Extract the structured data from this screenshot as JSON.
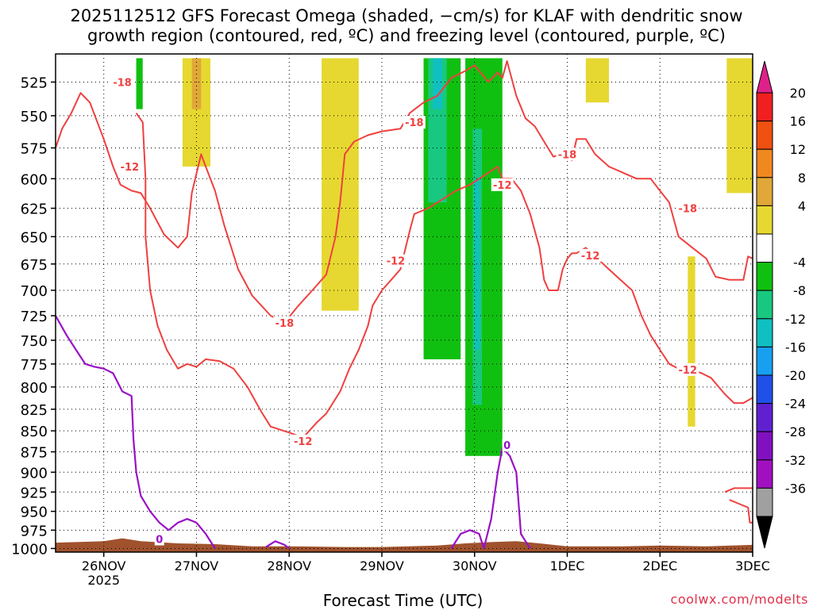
{
  "title_line1": "2025112512 GFS Forecast Omega (shaded, −cm/s) for KLAF with dendritic snow",
  "title_line2": "growth region (contoured, red, ºC) and freezing level (contoured, purple, ºC)",
  "xlabel": "Forecast Time (UTC)",
  "credit": "coolwx.com/modelts",
  "colors": {
    "dgz_contour": "#f04040",
    "freezing_contour": "#9a10c8",
    "terrain": "#a0522d",
    "grid": "#000000"
  },
  "chart_data": {
    "type": "heatmap",
    "x_ticks": [
      {
        "label": "26NOV",
        "sub": "2025",
        "day": 0
      },
      {
        "label": "27NOV",
        "day": 1
      },
      {
        "label": "28NOV",
        "day": 2
      },
      {
        "label": "29NOV",
        "day": 3
      },
      {
        "label": "30NOV",
        "day": 4
      },
      {
        "label": "1DEC",
        "day": 5
      },
      {
        "label": "2DEC",
        "day": 6
      },
      {
        "label": "3DEC",
        "day": 7
      }
    ],
    "xlim_days": [
      -0.52,
      7.0
    ],
    "y_ticks": [
      525,
      550,
      575,
      600,
      625,
      650,
      675,
      700,
      725,
      750,
      775,
      800,
      825,
      850,
      875,
      900,
      925,
      950,
      975,
      1000
    ],
    "ylim_hPa": [
      1005,
      505
    ],
    "y_axis_log": true,
    "grid": true,
    "colorbar": {
      "labels": [
        "20",
        "16",
        "12",
        "8",
        "4",
        "-4",
        "-8",
        "-12",
        "-16",
        "-20",
        "-24",
        "-28",
        "-32",
        "-36"
      ],
      "colors": [
        "#e0208a",
        "#f02020",
        "#f05010",
        "#f08820",
        "#e0a838",
        "#e6d830",
        "#ffffff",
        "#10c010",
        "#18c880",
        "#10c0c0",
        "#18a0f0",
        "#2050e8",
        "#6020d0",
        "#8010c0",
        "#a010c0",
        "#a0a0a0",
        "#000000"
      ]
    },
    "omega_regions": [
      {
        "color": "#e6d830",
        "day_range": [
          0.85,
          1.15
        ],
        "p_range": [
          508,
          590
        ]
      },
      {
        "color": "#e0a838",
        "day_range": [
          0.95,
          1.05
        ],
        "p_range": [
          508,
          545
        ]
      },
      {
        "color": "#e6d830",
        "day_range": [
          2.35,
          2.75
        ],
        "p_range": [
          508,
          720
        ]
      },
      {
        "color": "#e6d830",
        "day_range": [
          5.2,
          5.45
        ],
        "p_range": [
          508,
          540
        ]
      },
      {
        "color": "#e6d830",
        "day_range": [
          6.3,
          6.38
        ],
        "p_range": [
          668,
          845
        ]
      },
      {
        "color": "#e6d830",
        "day_range": [
          6.72,
          7.0
        ],
        "p_range": [
          508,
          612
        ]
      },
      {
        "color": "#10c010",
        "day_range": [
          0.35,
          0.42
        ],
        "p_range": [
          508,
          545
        ]
      },
      {
        "color": "#10c010",
        "day_range": [
          3.45,
          3.85
        ],
        "p_range": [
          508,
          770
        ]
      },
      {
        "color": "#10c010",
        "day_range": [
          3.9,
          4.3
        ],
        "p_range": [
          508,
          880
        ]
      },
      {
        "color": "#18c880",
        "day_range": [
          3.5,
          3.7
        ],
        "p_range": [
          508,
          620
        ]
      },
      {
        "color": "#10c0c0",
        "day_range": [
          3.55,
          3.65
        ],
        "p_range": [
          508,
          545
        ]
      },
      {
        "color": "#18c880",
        "day_range": [
          3.98,
          4.08
        ],
        "p_range": [
          560,
          820
        ]
      },
      {
        "color": "#10c0c0",
        "day_range": [
          4.0,
          4.05
        ],
        "p_range": [
          600,
          760
        ]
      }
    ],
    "dgz_labels": [
      {
        "text": "-18",
        "day": 0.2,
        "p": 525
      },
      {
        "text": "-12",
        "day": 0.28,
        "p": 590
      },
      {
        "text": "-18",
        "day": 1.95,
        "p": 732
      },
      {
        "text": "-12",
        "day": 2.15,
        "p": 862
      },
      {
        "text": "-12",
        "day": 3.15,
        "p": 672
      },
      {
        "text": "-18",
        "day": 3.35,
        "p": 555
      },
      {
        "text": "-12",
        "day": 4.3,
        "p": 605
      },
      {
        "text": "-18",
        "day": 5.0,
        "p": 580
      },
      {
        "text": "-12",
        "day": 5.25,
        "p": 667
      },
      {
        "text": "-18",
        "day": 6.3,
        "p": 625
      },
      {
        "text": "-12",
        "day": 6.3,
        "p": 781
      }
    ],
    "freezing_labels": [
      {
        "text": "0",
        "day": 0.6,
        "p": 987
      },
      {
        "text": "0",
        "day": 4.35,
        "p": 867
      }
    ],
    "dgz_minus18_curves": [
      [
        [
          -0.52,
          575
        ],
        [
          -0.45,
          560
        ],
        [
          -0.35,
          548
        ],
        [
          -0.25,
          533
        ],
        [
          -0.15,
          540
        ],
        [
          0.0,
          568
        ],
        [
          0.1,
          590
        ],
        [
          0.18,
          605
        ],
        [
          0.3,
          610
        ],
        [
          0.4,
          612
        ],
        [
          0.5,
          625
        ],
        [
          0.65,
          648
        ],
        [
          0.8,
          660
        ],
        [
          0.9,
          650
        ],
        [
          0.95,
          612
        ],
        [
          1.05,
          580
        ],
        [
          1.1,
          590
        ],
        [
          1.2,
          610
        ],
        [
          1.3,
          640
        ],
        [
          1.45,
          680
        ],
        [
          1.6,
          705
        ],
        [
          1.8,
          725
        ],
        [
          1.95,
          732
        ],
        [
          2.1,
          715
        ],
        [
          2.25,
          700
        ],
        [
          2.4,
          685
        ],
        [
          2.5,
          650
        ],
        [
          2.55,
          620
        ],
        [
          2.6,
          580
        ],
        [
          2.7,
          570
        ],
        [
          2.85,
          565
        ],
        [
          3.0,
          562
        ],
        [
          3.2,
          560
        ],
        [
          3.3,
          548
        ],
        [
          3.45,
          540
        ],
        [
          3.6,
          535
        ],
        [
          3.75,
          522
        ],
        [
          3.9,
          517
        ],
        [
          4.0,
          513
        ],
        [
          4.15,
          525
        ],
        [
          4.25,
          518
        ],
        [
          4.3,
          522
        ],
        [
          4.35,
          510
        ],
        [
          4.45,
          535
        ],
        [
          4.55,
          552
        ],
        [
          4.65,
          558
        ],
        [
          4.75,
          570
        ],
        [
          4.85,
          582
        ],
        [
          4.95,
          580
        ],
        [
          5.05,
          585
        ],
        [
          5.1,
          568
        ],
        [
          5.2,
          568
        ],
        [
          5.3,
          580
        ],
        [
          5.45,
          590
        ],
        [
          5.6,
          595
        ],
        [
          5.75,
          600
        ],
        [
          5.9,
          600
        ],
        [
          6.0,
          610
        ],
        [
          6.1,
          620
        ],
        [
          6.2,
          650
        ],
        [
          6.35,
          660
        ],
        [
          6.5,
          670
        ],
        [
          6.6,
          687
        ],
        [
          6.75,
          690
        ],
        [
          6.9,
          690
        ],
        [
          6.95,
          668
        ],
        [
          7.0,
          670
        ]
      ]
    ],
    "dgz_minus12_curves": [
      [
        [
          0.35,
          548
        ],
        [
          0.42,
          555
        ],
        [
          0.45,
          600
        ],
        [
          0.45,
          650
        ],
        [
          0.5,
          700
        ],
        [
          0.58,
          735
        ],
        [
          0.68,
          760
        ],
        [
          0.8,
          780
        ],
        [
          0.9,
          775
        ],
        [
          1.0,
          778
        ],
        [
          1.1,
          770
        ],
        [
          1.25,
          772
        ],
        [
          1.4,
          780
        ],
        [
          1.55,
          800
        ],
        [
          1.7,
          828
        ],
        [
          1.8,
          845
        ],
        [
          2.0,
          852
        ],
        [
          2.15,
          858
        ],
        [
          2.3,
          840
        ],
        [
          2.4,
          830
        ],
        [
          2.55,
          805
        ],
        [
          2.65,
          780
        ],
        [
          2.75,
          760
        ],
        [
          2.85,
          735
        ],
        [
          2.9,
          715
        ],
        [
          3.0,
          700
        ],
        [
          3.1,
          690
        ],
        [
          3.2,
          680
        ],
        [
          3.3,
          645
        ],
        [
          3.35,
          630
        ],
        [
          3.5,
          625
        ],
        [
          3.6,
          620
        ],
        [
          3.7,
          615
        ],
        [
          3.8,
          610
        ],
        [
          3.95,
          605
        ],
        [
          4.05,
          600
        ],
        [
          4.15,
          595
        ],
        [
          4.25,
          590
        ],
        [
          4.3,
          600
        ],
        [
          4.4,
          600
        ],
        [
          4.5,
          610
        ],
        [
          4.6,
          630
        ],
        [
          4.7,
          660
        ],
        [
          4.75,
          690
        ],
        [
          4.8,
          700
        ],
        [
          4.9,
          700
        ],
        [
          4.95,
          680
        ],
        [
          5.0,
          670
        ],
        [
          5.05,
          665
        ],
        [
          5.1,
          665
        ],
        [
          5.2,
          660
        ],
        [
          5.3,
          668
        ],
        [
          5.45,
          680
        ],
        [
          5.55,
          688
        ],
        [
          5.7,
          700
        ],
        [
          5.8,
          725
        ],
        [
          5.9,
          745
        ],
        [
          6.0,
          760
        ],
        [
          6.1,
          775
        ],
        [
          6.2,
          780
        ],
        [
          6.3,
          780
        ],
        [
          6.45,
          785
        ],
        [
          6.55,
          790
        ],
        [
          6.7,
          808
        ],
        [
          6.8,
          818
        ],
        [
          6.9,
          818
        ],
        [
          7.0,
          812
        ]
      ],
      [
        [
          6.7,
          925
        ],
        [
          6.8,
          920
        ],
        [
          6.9,
          920
        ],
        [
          7.0,
          920
        ]
      ],
      [
        [
          6.75,
          935
        ],
        [
          6.85,
          940
        ],
        [
          6.95,
          945
        ],
        [
          6.97,
          965
        ],
        [
          7.0,
          965
        ]
      ]
    ],
    "freezing_curves": [
      [
        [
          -0.52,
          725
        ],
        [
          -0.4,
          745
        ],
        [
          -0.3,
          760
        ],
        [
          -0.2,
          775
        ],
        [
          -0.1,
          778
        ],
        [
          0.0,
          780
        ],
        [
          0.1,
          785
        ],
        [
          0.2,
          805
        ],
        [
          0.3,
          810
        ],
        [
          0.32,
          860
        ],
        [
          0.35,
          900
        ],
        [
          0.4,
          930
        ],
        [
          0.5,
          950
        ],
        [
          0.6,
          965
        ],
        [
          0.7,
          975
        ],
        [
          0.8,
          965
        ],
        [
          0.9,
          960
        ],
        [
          1.0,
          965
        ],
        [
          1.1,
          980
        ],
        [
          1.2,
          1000
        ]
      ],
      [
        [
          1.75,
          998
        ],
        [
          1.85,
          990
        ],
        [
          1.95,
          995
        ],
        [
          2.0,
          1000
        ]
      ],
      [
        [
          3.75,
          1000
        ],
        [
          3.85,
          980
        ],
        [
          3.95,
          975
        ],
        [
          4.05,
          980
        ],
        [
          4.1,
          1000
        ]
      ],
      [
        [
          4.1,
          1000
        ],
        [
          4.18,
          960
        ],
        [
          4.25,
          900
        ],
        [
          4.3,
          870
        ],
        [
          4.38,
          880
        ],
        [
          4.45,
          900
        ],
        [
          4.5,
          980
        ],
        [
          4.55,
          990
        ],
        [
          4.6,
          1000
        ]
      ]
    ],
    "terrain_top_hPa": [
      [
        -0.52,
        992
      ],
      [
        0.0,
        990
      ],
      [
        0.2,
        986
      ],
      [
        0.4,
        990
      ],
      [
        0.8,
        993
      ],
      [
        1.2,
        994
      ],
      [
        1.6,
        997
      ],
      [
        2.0,
        997
      ],
      [
        2.6,
        998
      ],
      [
        3.0,
        998
      ],
      [
        3.6,
        996
      ],
      [
        3.9,
        993
      ],
      [
        4.2,
        991
      ],
      [
        4.45,
        990
      ],
      [
        4.7,
        993
      ],
      [
        5.0,
        997
      ],
      [
        5.6,
        997
      ],
      [
        6.0,
        996
      ],
      [
        6.5,
        997
      ],
      [
        7.0,
        995
      ]
    ]
  }
}
